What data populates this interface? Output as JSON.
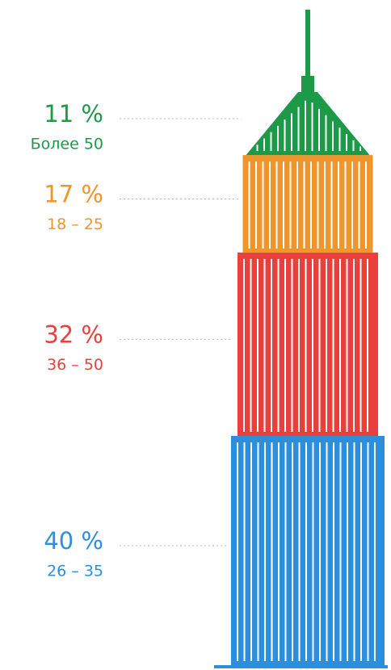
{
  "chart_data": {
    "type": "tower",
    "categories": [
      "26 – 35",
      "36 – 50",
      "18 – 25",
      "Более 50"
    ],
    "values": [
      40,
      32,
      17,
      11
    ],
    "value_labels": [
      "40 %",
      "32 %",
      "17 %",
      "11 %"
    ],
    "colors": [
      "#2b8fde",
      "#e8403c",
      "#f0952b",
      "#1c9a48"
    ]
  }
}
